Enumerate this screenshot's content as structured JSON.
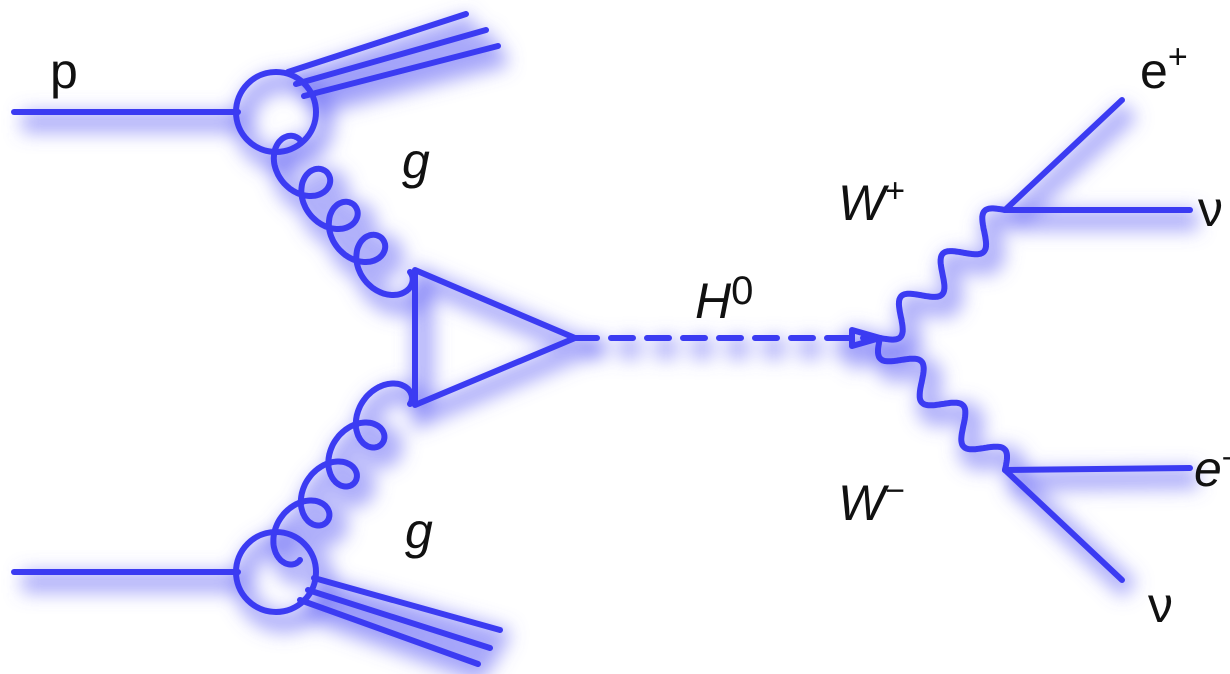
{
  "labels": [
    {
      "text": "p"
    },
    {
      "text": "g"
    },
    {
      "text": "g"
    },
    {
      "text": "H",
      "sup": "0"
    },
    {
      "text": "W",
      "sup": "+"
    },
    {
      "text": "W",
      "sup": "−"
    },
    {
      "text": "e",
      "sup": "+"
    },
    {
      "text": "ν"
    },
    {
      "text": "e",
      "sup": "-"
    },
    {
      "text": "ν"
    }
  ]
}
